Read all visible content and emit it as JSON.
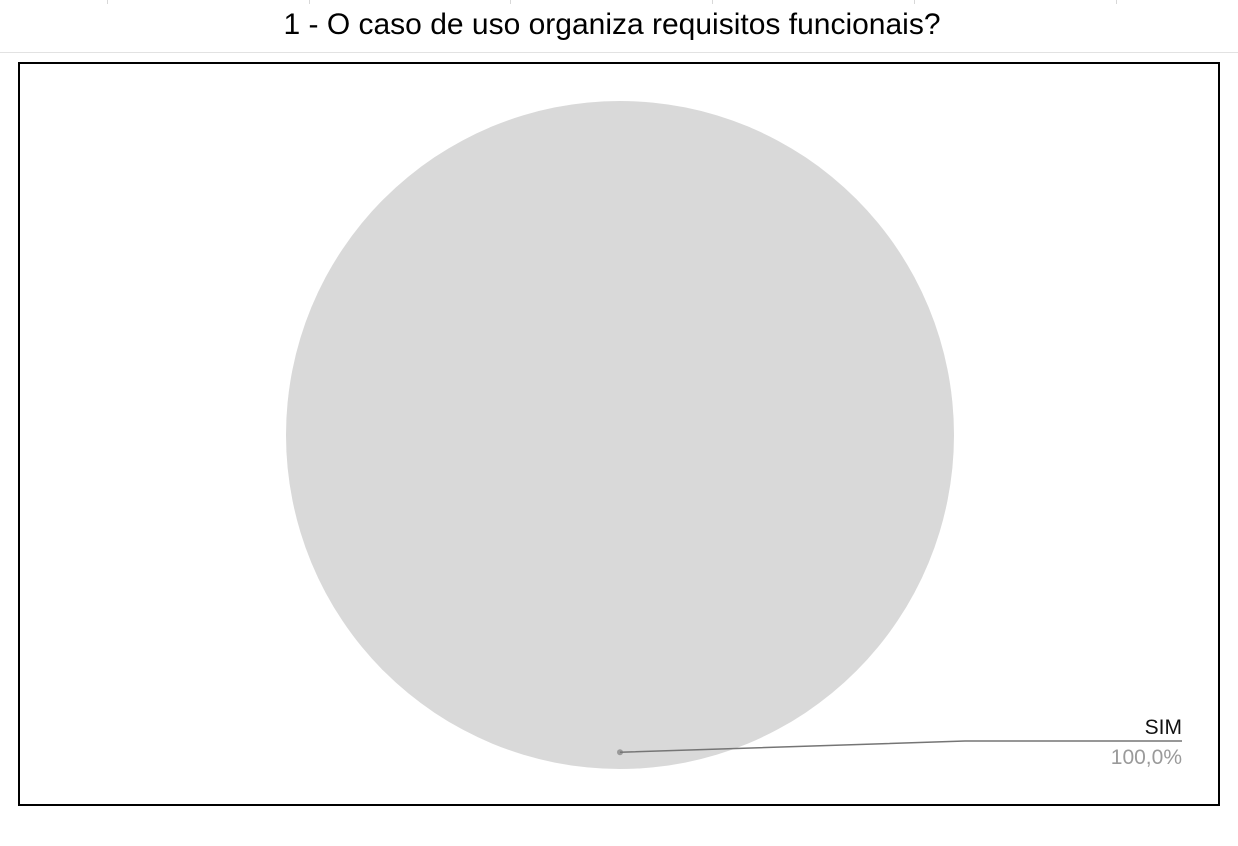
{
  "chart_data": {
    "type": "pie",
    "title": "1 - O caso de uso organiza requisitos funcionais?",
    "slices": [
      {
        "label": "SIM",
        "value": 100.0,
        "percent_label": "100,0%",
        "color": "#d9d9d9"
      }
    ],
    "legend": "none",
    "label_style": "callout-right"
  }
}
